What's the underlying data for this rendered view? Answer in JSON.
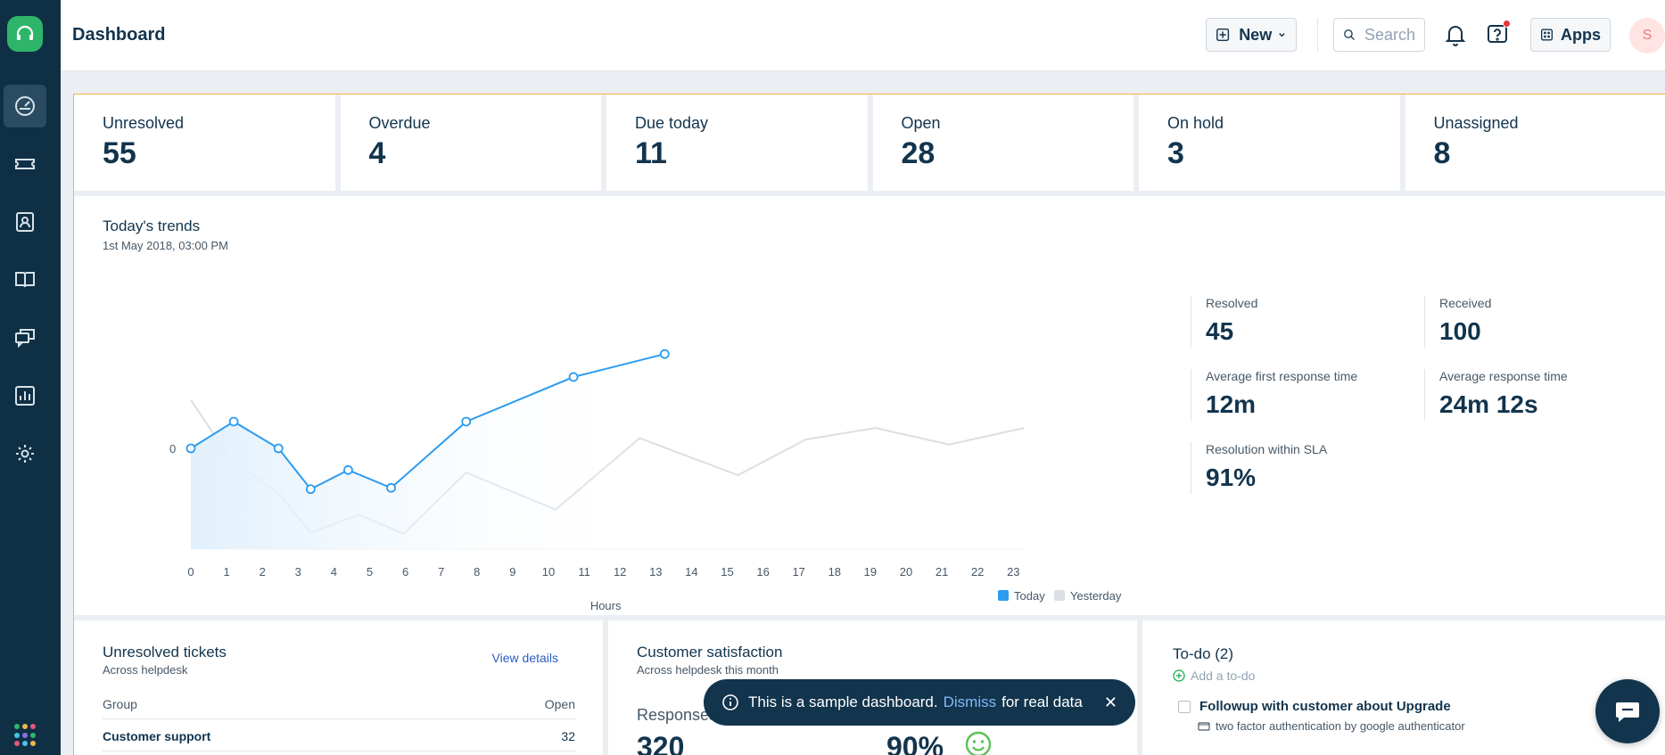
{
  "header": {
    "title": "Dashboard",
    "new_label": "New",
    "search_placeholder": "Search",
    "apps_label": "Apps",
    "avatar_initial": "S"
  },
  "sidebar": {
    "items": [
      {
        "icon": "dashboard-icon",
        "active": true
      },
      {
        "icon": "tickets-icon"
      },
      {
        "icon": "contacts-icon"
      },
      {
        "icon": "solutions-icon"
      },
      {
        "icon": "forums-icon"
      },
      {
        "icon": "reports-icon"
      },
      {
        "icon": "admin-settings-icon"
      }
    ]
  },
  "stats": [
    {
      "label": "Unresolved",
      "value": "55"
    },
    {
      "label": "Overdue",
      "value": "4"
    },
    {
      "label": "Due today",
      "value": "11"
    },
    {
      "label": "Open",
      "value": "28"
    },
    {
      "label": "On hold",
      "value": "3"
    },
    {
      "label": "Unassigned",
      "value": "8"
    }
  ],
  "trends": {
    "title": "Today's trends",
    "subtitle": "1st May 2018, 03:00 PM",
    "metrics": [
      {
        "label": "Resolved",
        "value": "45"
      },
      {
        "label": "Received",
        "value": "100"
      },
      {
        "label": "Average first response time",
        "value": "12m"
      },
      {
        "label": "Average response time",
        "value": "24m 12s"
      },
      {
        "label": "Resolution within SLA",
        "value": "91%"
      }
    ]
  },
  "chart_data": {
    "type": "line",
    "xlabel": "Hours",
    "ylabel": "",
    "y_tick_labels": [
      "0"
    ],
    "x": [
      0,
      1,
      2,
      3,
      4,
      5,
      6,
      7,
      8,
      9,
      10,
      11,
      12,
      13,
      14,
      15,
      16,
      17,
      18,
      19,
      20,
      21,
      22,
      23
    ],
    "series": [
      {
        "name": "Today",
        "color": "#2c9cf0",
        "x": [
          0,
          1.2,
          2.45,
          3.35,
          4.4,
          5.6,
          7.7,
          10.7,
          13.25
        ],
        "values": [
          0,
          0.21,
          0,
          -0.32,
          -0.17,
          -0.31,
          0.21,
          0.56,
          0.74
        ]
      },
      {
        "name": "Yesterday",
        "color": "#dcdfe3",
        "x": [
          0,
          1.15,
          2.45,
          3.35,
          4.7,
          5.95,
          7.7,
          10.2,
          12.55,
          15.3,
          17.2,
          19.15,
          21.2,
          23.3
        ],
        "values": [
          0.38,
          -0.1,
          -0.35,
          -0.66,
          -0.52,
          -0.67,
          -0.19,
          -0.48,
          0.08,
          -0.21,
          0.07,
          0.16,
          0.03,
          0.16
        ]
      }
    ],
    "legend": "bottom-right",
    "grid": false
  },
  "unresolved": {
    "title": "Unresolved tickets",
    "subtitle": "Across helpdesk",
    "view_details": "View details",
    "col_group": "Group",
    "col_open": "Open",
    "rows": [
      {
        "group": "Customer support",
        "open": "32"
      }
    ]
  },
  "csat": {
    "title": "Customer satisfaction",
    "subtitle": "Across helpdesk this month",
    "responses_label": "Responses",
    "responses_value": "320",
    "positive_pct": "90%"
  },
  "todo": {
    "title": "To-do (2)",
    "add_label": "Add a to-do",
    "items": [
      {
        "text": "Followup with customer about Upgrade",
        "sub": "two factor authentication by google authenticator"
      }
    ]
  },
  "toast": {
    "text": "This is a sample dashboard.",
    "link": "Dismiss",
    "suffix": "for real data"
  }
}
